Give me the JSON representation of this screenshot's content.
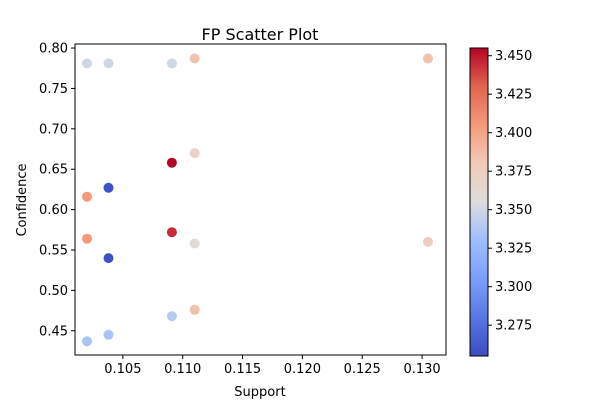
{
  "chart_data": {
    "type": "scatter",
    "title": "FP Scatter Plot",
    "xlabel": "Support",
    "ylabel": "Confidence",
    "xlim": [
      0.101,
      0.132
    ],
    "ylim": [
      0.42,
      0.805
    ],
    "x_ticks": [
      0.105,
      0.11,
      0.115,
      0.12,
      0.125,
      0.13
    ],
    "x_tick_labels": [
      "0.105",
      "0.110",
      "0.115",
      "0.120",
      "0.125",
      "0.130"
    ],
    "y_ticks": [
      0.45,
      0.5,
      0.55,
      0.6,
      0.65,
      0.7,
      0.75,
      0.8
    ],
    "y_tick_labels": [
      "0.45",
      "0.50",
      "0.55",
      "0.60",
      "0.65",
      "0.70",
      "0.75",
      "0.80"
    ],
    "colorbar": {
      "colormap": "coolwarm",
      "range": [
        3.255,
        3.455
      ],
      "ticks": [
        3.275,
        3.3,
        3.325,
        3.35,
        3.375,
        3.4,
        3.425,
        3.45
      ],
      "tick_labels": [
        "3.275",
        "3.300",
        "3.325",
        "3.350",
        "3.375",
        "3.400",
        "3.425",
        "3.450"
      ]
    },
    "grid": false,
    "points": [
      {
        "x": 0.102,
        "y": 0.781,
        "c": 3.35
      },
      {
        "x": 0.1038,
        "y": 0.781,
        "c": 3.35
      },
      {
        "x": 0.1091,
        "y": 0.781,
        "c": 3.35
      },
      {
        "x": 0.111,
        "y": 0.787,
        "c": 3.385
      },
      {
        "x": 0.1305,
        "y": 0.787,
        "c": 3.385
      },
      {
        "x": 0.111,
        "y": 0.67,
        "c": 3.37
      },
      {
        "x": 0.1091,
        "y": 0.658,
        "c": 3.455
      },
      {
        "x": 0.1038,
        "y": 0.627,
        "c": 3.258
      },
      {
        "x": 0.102,
        "y": 0.616,
        "c": 3.405
      },
      {
        "x": 0.102,
        "y": 0.564,
        "c": 3.405
      },
      {
        "x": 0.1091,
        "y": 0.572,
        "c": 3.445
      },
      {
        "x": 0.111,
        "y": 0.558,
        "c": 3.36
      },
      {
        "x": 0.1305,
        "y": 0.56,
        "c": 3.375
      },
      {
        "x": 0.1038,
        "y": 0.54,
        "c": 3.258
      },
      {
        "x": 0.111,
        "y": 0.476,
        "c": 3.385
      },
      {
        "x": 0.1091,
        "y": 0.468,
        "c": 3.34
      },
      {
        "x": 0.1038,
        "y": 0.445,
        "c": 3.335
      },
      {
        "x": 0.102,
        "y": 0.437,
        "c": 3.335
      }
    ]
  }
}
